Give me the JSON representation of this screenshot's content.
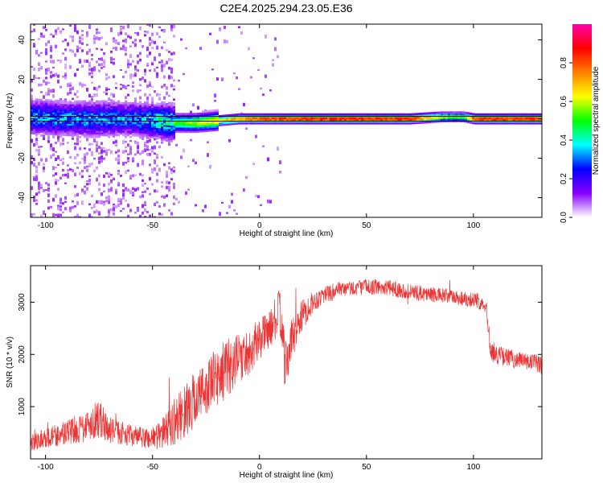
{
  "title": "C2E4.2025.294.23.05.E36",
  "chart_data": [
    {
      "type": "heatmap",
      "title": "C2E4.2025.294.23.05.E36",
      "xlabel": "Height of straight line (km)",
      "ylabel": "Frequency (Hz)",
      "xlim": [
        -107,
        132
      ],
      "ylim": [
        -50,
        48
      ],
      "xticks": [
        -100,
        -50,
        0,
        50,
        100
      ],
      "yticks": [
        -40,
        -20,
        0,
        20,
        40
      ],
      "colorbar": {
        "label": "Normalized spectral amplitude",
        "range": [
          0,
          1
        ],
        "ticks": [
          "0.0",
          "0.2",
          "0.4",
          "0.6",
          "0.8"
        ],
        "colormap": [
          "#ffffff",
          "#8800ff",
          "#0000ff",
          "#00ffff",
          "#00ff00",
          "#ffff00",
          "#ff8000",
          "#ff0000",
          "#ff00aa"
        ]
      },
      "ridge": {
        "x": [
          -107,
          -90,
          -75,
          -60,
          -50,
          -40,
          -30,
          -20,
          -10,
          0,
          10,
          30,
          50,
          70,
          85,
          95,
          100,
          115,
          132
        ],
        "center_hz": [
          1,
          0,
          0,
          0,
          -1,
          -2,
          -2,
          -1,
          0,
          0,
          0,
          0,
          0,
          0,
          1,
          1,
          0,
          0,
          0
        ],
        "amplitude": [
          0.35,
          0.35,
          0.35,
          0.32,
          0.4,
          0.5,
          0.6,
          0.7,
          0.8,
          0.85,
          0.9,
          0.92,
          0.92,
          0.9,
          0.6,
          0.55,
          0.9,
          0.9,
          0.9
        ]
      }
    },
    {
      "type": "line",
      "xlabel": "Height of straight line (km)",
      "ylabel": "SNR (10 * v/v)",
      "xlim": [
        -107,
        132
      ],
      "ylim": [
        0,
        3700
      ],
      "xticks": [
        -100,
        -50,
        0,
        50,
        100
      ],
      "yticks": [
        1000,
        2000,
        3000
      ],
      "series": [
        {
          "color": "#ee3333",
          "x": [
            -107,
            -100,
            -90,
            -80,
            -76,
            -70,
            -60,
            -55,
            -50,
            -45,
            -40,
            -35,
            -30,
            -25,
            -20,
            -15,
            -10,
            -5,
            0,
            5,
            8,
            10,
            12,
            15,
            20,
            25,
            30,
            40,
            50,
            60,
            70,
            80,
            90,
            100,
            106,
            108,
            110,
            120,
            132
          ],
          "y": [
            350,
            400,
            500,
            650,
            800,
            550,
            450,
            400,
            400,
            500,
            700,
            900,
            1150,
            1350,
            1550,
            1750,
            1900,
            2050,
            2300,
            2500,
            2700,
            2800,
            1700,
            2300,
            2750,
            3000,
            3150,
            3250,
            3300,
            3280,
            3200,
            3150,
            3100,
            3050,
            2950,
            2050,
            2000,
            1900,
            1800
          ],
          "noise": [
            200,
            200,
            250,
            300,
            400,
            250,
            200,
            200,
            250,
            300,
            450,
            500,
            550,
            500,
            600,
            550,
            500,
            450,
            400,
            350,
            450,
            500,
            500,
            400,
            300,
            200,
            180,
            150,
            150,
            150,
            150,
            150,
            150,
            150,
            150,
            200,
            180,
            180,
            180
          ]
        }
      ]
    }
  ]
}
